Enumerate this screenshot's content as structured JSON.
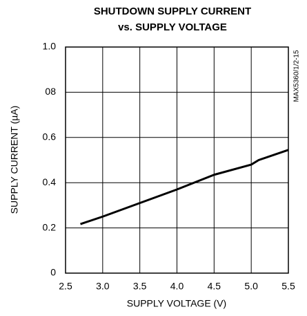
{
  "chart_data": {
    "type": "line",
    "title": "SHUTDOWN SUPPLY CURRENT",
    "subtitle": "vs. SUPPLY VOLTAGE",
    "xlabel": "SUPPLY VOLTAGE (V)",
    "ylabel": "SUPPLY CURRENT (µA)",
    "annotations": [
      "MAX5360/1/2-15"
    ],
    "x": [
      2.7,
      3.0,
      3.5,
      4.0,
      4.5,
      5.0,
      5.1,
      5.5
    ],
    "series": [
      {
        "name": "Supply current",
        "color": "#000000",
        "values": [
          0.217,
          0.25,
          0.31,
          0.37,
          0.435,
          0.48,
          0.5,
          0.545
        ]
      }
    ],
    "xlim": [
      2.5,
      5.5
    ],
    "xticks": [
      2.5,
      {
        "value": 3,
        "label": "3.0"
      },
      3.5,
      {
        "value": 4,
        "label": "4.0"
      },
      4.5,
      {
        "value": 5,
        "label": "5.0"
      },
      5.5
    ],
    "ylim": [
      0,
      1
    ],
    "yticks": [
      0,
      0.2,
      0.4,
      0.6,
      {
        "value": 0.8,
        "label": "08"
      },
      {
        "value": 1,
        "label": "1.0"
      }
    ],
    "grid": true
  }
}
